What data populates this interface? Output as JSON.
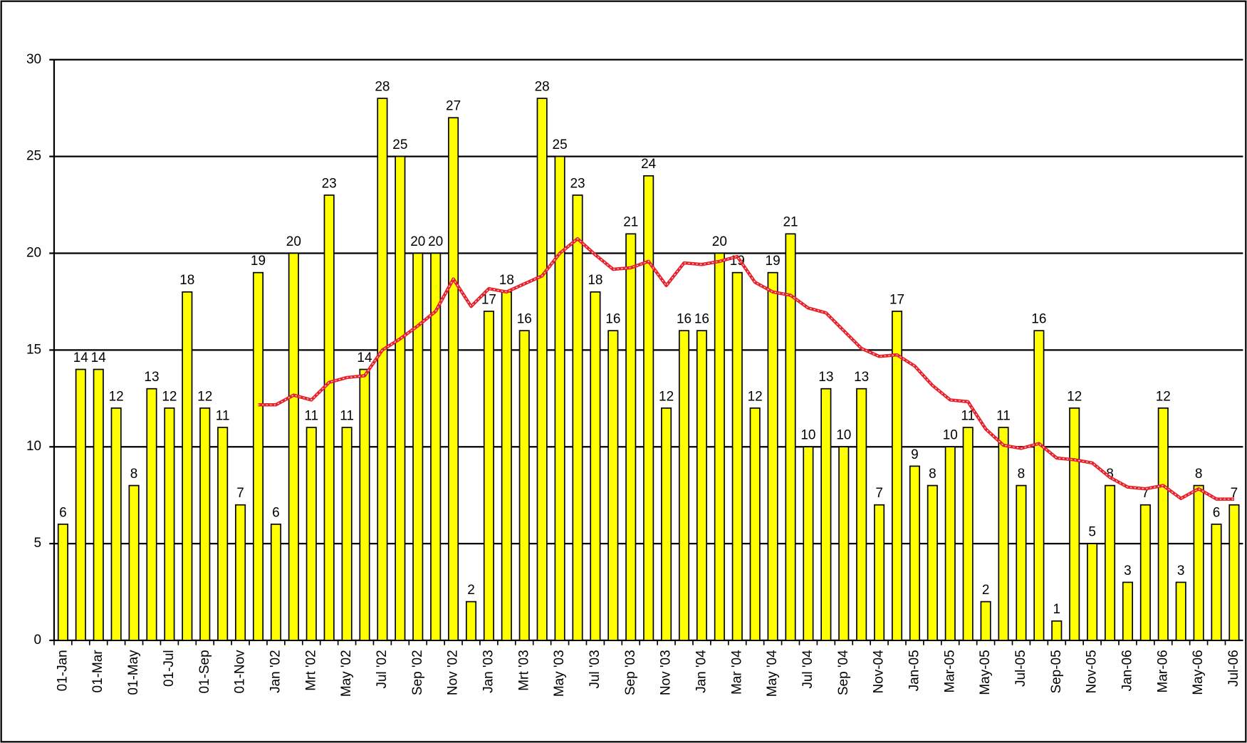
{
  "chart_data": {
    "type": "bar",
    "categories": [
      "01-Jan",
      null,
      "01-Mar",
      null,
      "01-May",
      null,
      "01-Jul",
      null,
      "01-Sep",
      null,
      "01-Nov",
      null,
      "Jan '02",
      null,
      "Mrt '02",
      null,
      "May '02",
      null,
      "Jul '02",
      null,
      "Sep '02",
      null,
      "Nov '02",
      null,
      "Jan '03",
      null,
      "Mrt '03",
      null,
      "May '03",
      null,
      "Jul '03",
      null,
      "Sep '03",
      null,
      "Nov '03",
      null,
      "Jan '04",
      null,
      "Mar '04",
      null,
      "May '04",
      null,
      "Jul '04",
      null,
      "Sep '04",
      null,
      "Nov-04",
      null,
      "Jan-05",
      null,
      "Mar-05",
      null,
      "May-05",
      null,
      "Jul-05",
      null,
      "Sep-05",
      null,
      "Nov-05",
      null,
      "Jan-06",
      null,
      "Mar-06",
      null,
      "May-06",
      null,
      "Jul-06"
    ],
    "series": [
      {
        "type": "bar",
        "color": "#ffff00",
        "values": [
          6,
          14,
          14,
          12,
          8,
          13,
          12,
          18,
          12,
          11,
          7,
          19,
          6,
          20,
          11,
          23,
          11,
          14,
          28,
          25,
          20,
          20,
          27,
          2,
          17,
          18,
          16,
          28,
          25,
          23,
          18,
          16,
          21,
          24,
          12,
          16,
          16,
          20,
          19,
          12,
          19,
          21,
          10,
          13,
          10,
          13,
          7,
          17,
          9,
          8,
          10,
          11,
          2,
          11,
          8,
          16,
          1,
          12,
          5,
          8,
          3,
          7,
          12,
          3,
          8,
          6,
          7
        ]
      },
      {
        "type": "line",
        "color": "#e8202a",
        "values": [
          null,
          null,
          null,
          null,
          null,
          null,
          null,
          null,
          null,
          null,
          null,
          12.17,
          12.17,
          12.67,
          12.42,
          13.33,
          13.58,
          13.67,
          15.0,
          15.58,
          16.25,
          17.0,
          18.67,
          17.25,
          18.17,
          18.0,
          18.42,
          18.83,
          20.0,
          20.75,
          19.92,
          19.17,
          19.25,
          19.58,
          18.33,
          19.5,
          19.42,
          19.58,
          19.83,
          18.5,
          18.0,
          17.83,
          17.17,
          16.92,
          16.0,
          15.08,
          14.67,
          14.75,
          14.17,
          13.17,
          12.42,
          12.33,
          10.92,
          10.08,
          9.92,
          10.17,
          9.42,
          9.33,
          9.17,
          8.42,
          7.92,
          7.83,
          8.0,
          7.33,
          7.83,
          7.3,
          7.3
        ]
      }
    ],
    "ylim": [
      0,
      30
    ],
    "yticks": [
      0,
      5,
      10,
      15,
      20,
      25,
      30
    ],
    "grid": true
  }
}
